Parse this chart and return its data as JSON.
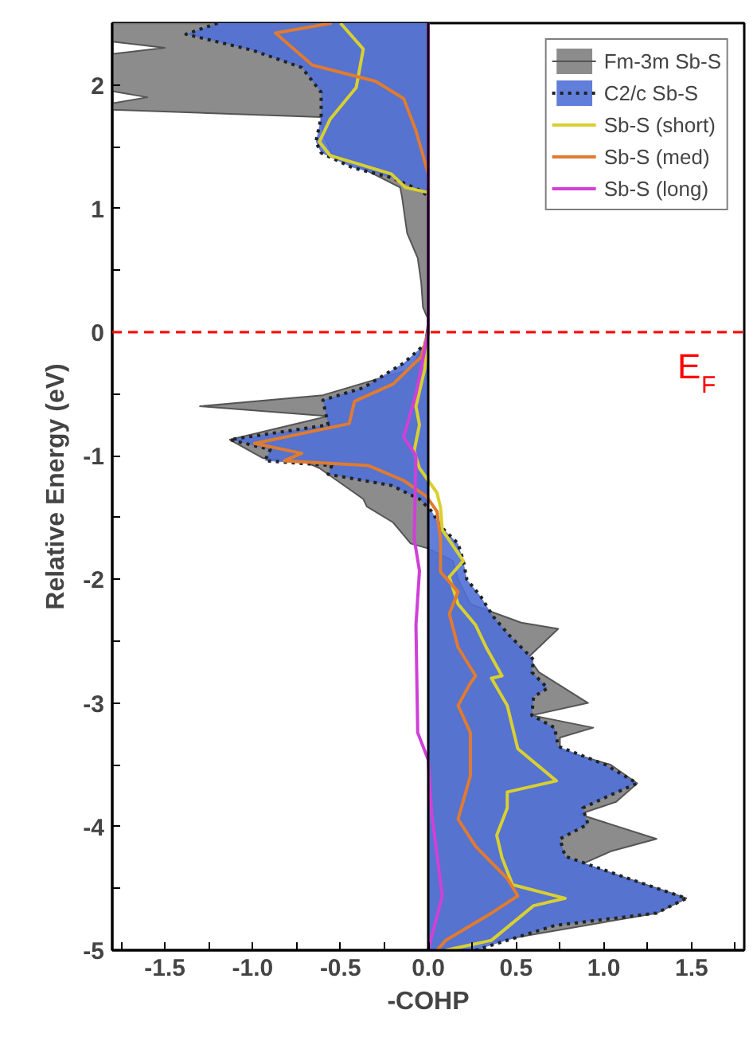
{
  "chart_data": {
    "type": "area",
    "xlabel": "-COHP",
    "ylabel": "Relative Energy (eV)",
    "xlim": [
      -1.8,
      1.8
    ],
    "ylim": [
      -5,
      2.5
    ],
    "xticks": [
      -1.5,
      {
        "value": -1.0,
        "label": "-1.0"
      },
      -0.5,
      {
        "value": 0.0,
        "label": "0.0"
      },
      0.5,
      {
        "value": 1.0,
        "label": "1.0"
      },
      1.5,
      {
        "value": -1.75,
        "label": null
      },
      {
        "value": -1.25,
        "label": null
      },
      {
        "value": -0.75,
        "label": null
      },
      {
        "value": -0.25,
        "label": null
      },
      {
        "value": 0.25,
        "label": null
      },
      {
        "value": 0.75,
        "label": null
      },
      {
        "value": 1.25,
        "label": null
      },
      {
        "value": 1.75,
        "label": null
      }
    ],
    "yticks": [
      -5,
      -4,
      -3,
      -2,
      -1,
      0,
      1,
      2,
      {
        "value": -4.5,
        "label": null
      },
      {
        "value": -3.5,
        "label": null
      },
      {
        "value": -2.5,
        "label": null
      },
      {
        "value": -1.5,
        "label": null
      },
      {
        "value": -0.5,
        "label": null
      },
      {
        "value": 0.5,
        "label": null
      },
      {
        "value": 1.5,
        "label": null
      }
    ],
    "orientation": "horizontal",
    "legend": "top right",
    "grid": false,
    "ref_lines": [
      {
        "axis": "y",
        "value": 0,
        "label": "E$_{F}$",
        "color": "#ff0000",
        "line_style": "dashed"
      },
      {
        "axis": "x",
        "value": 0,
        "label": null,
        "color": "#000000",
        "line_style": "solid"
      }
    ],
    "series": [
      {
        "name": "Fm-3m Sb-S",
        "color": "#808080",
        "x": [
          2.5,
          2.35,
          2.3,
          2.25,
          1.95,
          1.9,
          1.85,
          1.8,
          1.74,
          1.6,
          1.45,
          1.17,
          1.1,
          1.0,
          0.8,
          0.6,
          0.4,
          0.2,
          0.1,
          -0.1,
          -0.3,
          -0.51,
          -0.6,
          -0.68,
          -0.87,
          -1.02,
          -1.05,
          -1.1,
          -1.35,
          -1.41,
          -1.54,
          -1.71,
          -1.75,
          -1.85,
          -2.0,
          -2.2,
          -2.35,
          -2.4,
          -2.63,
          -2.75,
          -3.0,
          -3.1,
          -3.2,
          -3.28,
          -3.38,
          -3.5,
          -3.65,
          -3.8,
          -3.9,
          -4.1,
          -4.2,
          -4.3,
          -4.58,
          -4.7,
          -5.0
        ],
        "values": [
          -1.8,
          -1.8,
          -1.5,
          -1.8,
          -1.8,
          -1.6,
          -1.8,
          -1.8,
          -0.61,
          -0.6,
          -0.55,
          -0.16,
          -0.15,
          -0.14,
          -0.12,
          -0.06,
          -0.04,
          -0.03,
          0,
          -0.02,
          -0.1,
          -0.6,
          -1.3,
          -0.57,
          -1.13,
          -0.94,
          -0.7,
          -0.62,
          -0.37,
          -0.35,
          -0.2,
          -0.1,
          0.0,
          0.14,
          0.17,
          0.24,
          0.53,
          0.74,
          0.57,
          0.63,
          0.91,
          0.59,
          0.94,
          0.75,
          0.75,
          1.04,
          1.19,
          1.07,
          0.86,
          1.3,
          1.04,
          0.88,
          1.47,
          1.3,
          0.08
        ]
      },
      {
        "name": "C2/c Sb-S",
        "color": "#4f70d6",
        "line_style": "dotted",
        "x": [
          2.5,
          2.41,
          2.28,
          2.14,
          1.94,
          1.75,
          1.67,
          1.54,
          1.45,
          1.33,
          1.25,
          1.15,
          1.1,
          0.5,
          0.0,
          -0.1,
          -0.25,
          -0.45,
          -0.55,
          -0.75,
          -0.87,
          -0.95,
          -1.04,
          -1.08,
          -1.15,
          -1.24,
          -1.35,
          -1.45,
          -1.57,
          -1.71,
          -1.85,
          -2.0,
          -2.14,
          -2.3,
          -2.45,
          -2.65,
          -2.75,
          -2.88,
          -2.95,
          -3.1,
          -3.2,
          -3.35,
          -3.5,
          -3.65,
          -3.75,
          -3.85,
          -3.98,
          -4.1,
          -4.24,
          -4.4,
          -4.58,
          -4.7,
          -4.8,
          -5.0
        ],
        "values": [
          -1.2,
          -1.38,
          -1.0,
          -0.72,
          -0.61,
          -0.61,
          -0.62,
          -0.64,
          -0.61,
          -0.43,
          -0.21,
          -0.05,
          0,
          0,
          0,
          -0.02,
          -0.14,
          -0.37,
          -0.6,
          -0.57,
          -1.13,
          -0.9,
          -0.93,
          -0.55,
          -0.57,
          -0.21,
          -0.05,
          0.02,
          0.07,
          0.17,
          0.2,
          0.22,
          0.3,
          0.37,
          0.46,
          0.6,
          0.59,
          0.68,
          0.6,
          0.59,
          0.72,
          0.74,
          1.01,
          1.19,
          1.03,
          0.88,
          0.91,
          0.75,
          0.78,
          1.1,
          1.47,
          1.3,
          0.72,
          0.27
        ]
      },
      {
        "name": "Sb-S (short)",
        "type": "line",
        "color": "#d8d030",
        "x": [
          2.5,
          2.29,
          1.98,
          1.72,
          1.54,
          1.43,
          1.28,
          1.17,
          1.13,
          0.5,
          0.0,
          -0.3,
          -0.6,
          -0.75,
          -0.96,
          -1.1,
          -1.3,
          -1.42,
          -1.6,
          -1.85,
          -1.98,
          -2.2,
          -2.37,
          -2.55,
          -2.78,
          -2.8,
          -3.02,
          -3.37,
          -3.63,
          -3.72,
          -3.85,
          -4.07,
          -4.25,
          -4.47,
          -4.58,
          -4.64,
          -4.92,
          -5.0
        ],
        "values": [
          -0.5,
          -0.37,
          -0.41,
          -0.56,
          -0.62,
          -0.56,
          -0.21,
          -0.13,
          0,
          0,
          0,
          -0.02,
          -0.07,
          -0.05,
          -0.08,
          -0.05,
          0.05,
          0.07,
          0.08,
          0.2,
          0.12,
          0.17,
          0.27,
          0.33,
          0.42,
          0.36,
          0.45,
          0.51,
          0.73,
          0.45,
          0.45,
          0.39,
          0.42,
          0.48,
          0.78,
          0.6,
          0.36,
          0.1
        ]
      },
      {
        "name": "Sb-S (med)",
        "type": "line",
        "color": "#e07b30",
        "x": [
          2.5,
          2.42,
          2.16,
          2.03,
          1.89,
          1.63,
          1.28,
          0.5,
          0.0,
          -0.2,
          -0.42,
          -0.56,
          -0.74,
          -0.9,
          -0.98,
          -1.04,
          -1.08,
          -1.2,
          -1.33,
          -1.45,
          -1.68,
          -1.94,
          -2.1,
          -2.28,
          -2.55,
          -2.78,
          -2.84,
          -3.02,
          -3.24,
          -3.59,
          -3.94,
          -4.16,
          -4.42,
          -4.56,
          -4.7,
          -4.92,
          -5.0
        ],
        "values": [
          -0.55,
          -0.87,
          -0.66,
          -0.3,
          -0.14,
          -0.07,
          0,
          0,
          0,
          -0.04,
          -0.2,
          -0.42,
          -0.45,
          -0.99,
          -0.72,
          -0.82,
          -0.34,
          -0.14,
          -0.01,
          0.05,
          0.07,
          0.07,
          0.17,
          0.12,
          0.17,
          0.27,
          0.24,
          0.17,
          0.24,
          0.24,
          0.17,
          0.27,
          0.45,
          0.51,
          0.36,
          0.1,
          0.05
        ]
      },
      {
        "name": "Sb-S (long)",
        "type": "line",
        "color": "#d040d8",
        "x": [
          2.5,
          1.0,
          0.0,
          -0.5,
          -0.85,
          -1.0,
          -1.67,
          -1.93,
          -2.37,
          -3.24,
          -3.46,
          -3.9,
          -4.56,
          -5.0
        ],
        "values": [
          0,
          0,
          0,
          -0.07,
          -0.14,
          -0.07,
          -0.08,
          -0.05,
          -0.07,
          -0.06,
          0.0,
          0.02,
          0.08,
          0
        ]
      }
    ]
  }
}
